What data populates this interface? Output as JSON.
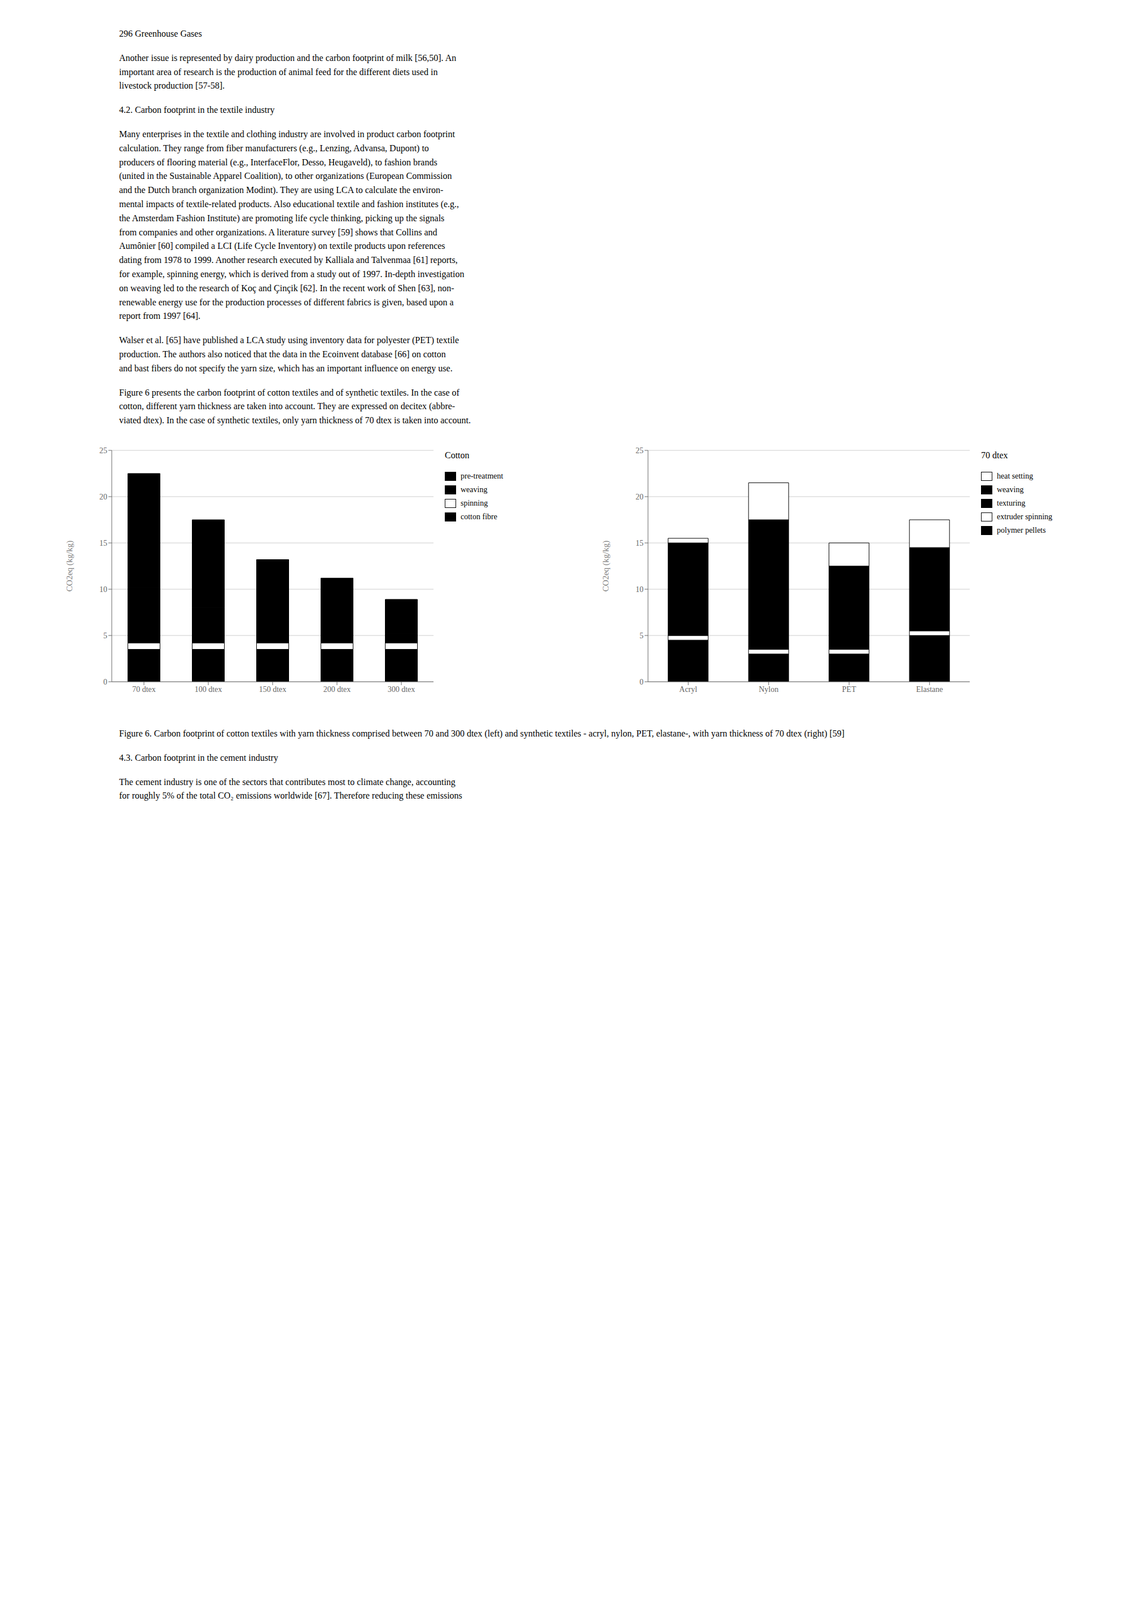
{
  "chart_data": [
    {
      "type": "bar",
      "title": "Cotton",
      "ylabel": "CO2eq (kg/kg)",
      "stacked": true,
      "grid": true,
      "legend": "right",
      "ylim": [
        0,
        25
      ],
      "yticks": [
        0,
        5,
        10,
        15,
        20,
        25
      ],
      "categories": [
        "70 dtex",
        "100 dtex",
        "150 dtex",
        "200 dtex",
        "300 dtex"
      ],
      "series": [
        {
          "name": "cotton fibre",
          "color": "#000000",
          "values": [
            3.5,
            3.5,
            3.5,
            3.5,
            3.5
          ]
        },
        {
          "name": "spinning",
          "color": "#ffffff",
          "values": [
            0.7,
            0.7,
            0.7,
            0.7,
            0.7
          ]
        },
        {
          "name": "weaving",
          "color": "#000000",
          "values": [
            6.0,
            3.8,
            2.5,
            1.5,
            1.0
          ]
        },
        {
          "name": "pre-treatment",
          "color": "#000000",
          "values": [
            12.3,
            9.5,
            6.5,
            5.5,
            3.7
          ]
        }
      ],
      "annotations": [
        "296    Greenhouse Gases",
        "Another issue is represented by dairy production and the carbon footprint of milk [56,50]. An\nimportant area of research is the production of animal feed for the different diets used in\nlivestock production [57-58].",
        "4.2. Carbon footprint in the textile industry",
        "Many enterprises in the textile and clothing industry are involved in product carbon footprint\ncalculation. They range from fiber manufacturers (e.g., Lenzing, Advansa, Dupont) to\nproducers of flooring material (e.g., InterfaceFlor, Desso, Heugaveld), to fashion brands\n(united in the Sustainable Apparel Coalition), to other organizations (European Commission\nand the Dutch branch organization Modint). They are using LCA to calculate the environ-\nmental impacts of textile-related products. Also educational textile and fashion institutes (e.g.,\nthe Amsterdam Fashion Institute) are promoting life cycle thinking, picking up the signals\nfrom companies and other organizations. A literature survey [59] shows that Collins and\nAumônier [60] compiled a LCI (Life Cycle Inventory) on textile products upon references\ndating from 1978 to 1999. Another research executed by Kalliala and Talvenmaa [61] reports,\nfor example, spinning energy, which is derived from a study out of 1997. In-depth investigation\non weaving led to the research of Koç and Çinçik [62]. In the recent work of Shen [63], non-\nrenewable energy use for the production processes of different fabrics is given, based upon a\nreport from 1997 [64].",
        "Walser et al. [65] have published a LCA study using inventory data for polyester (PET) textile\nproduction. The authors also noticed that the data in the Ecoinvent database [66] on cotton\nand bast fibers do not specify the yarn size, which has an important influence on energy use.",
        "Figure 6 presents the carbon footprint of cotton textiles and of synthetic textiles. In the case of\ncotton, different yarn thickness are taken into account. They are expressed on decitex (abbre-\nviated dtex). In the case of synthetic textiles, only yarn thickness of 70 dtex is taken into account."
      ]
    },
    {
      "type": "bar",
      "title": "70 dtex",
      "ylabel": "CO2eq (kg/kg)",
      "stacked": true,
      "grid": true,
      "legend": "right",
      "ylim": [
        0,
        25
      ],
      "yticks": [
        0,
        5,
        10,
        15,
        20,
        25
      ],
      "categories": [
        "Acryl",
        "Nylon",
        "PET",
        "Elastane"
      ],
      "series": [
        {
          "name": "polymer pellets",
          "color": "#000000",
          "values": [
            4.5,
            3.0,
            3.0,
            5.0
          ]
        },
        {
          "name": "extruder spinning",
          "color": "#ffffff",
          "values": [
            0.5,
            0.5,
            0.5,
            0.5
          ]
        },
        {
          "name": "texturing",
          "color": "#000000",
          "values": [
            0.3,
            0.3,
            0.3,
            0.3
          ]
        },
        {
          "name": "weaving",
          "color": "#000000",
          "values": [
            9.7,
            13.7,
            8.7,
            8.7
          ]
        },
        {
          "name": "heat setting",
          "color": "#ffffff",
          "values": [
            0.5,
            4.0,
            2.5,
            3.0
          ]
        }
      ],
      "annotations": [
        "Figure 6. Carbon footprint of cotton textiles with yarn thickness comprised between 70 and 300 dtex (left) and synthetic textiles - acryl, nylon, PET, elastane-, with yarn thickness of 70 dtex (right) [59]",
        "4.3. Carbon footprint in the cement industry",
        "The cement industry is one of the sectors that contributes most to climate change, accounting\nfor roughly 5% of the total CO₂ emissions worldwide [67]. Therefore reducing these emissions"
      ]
    }
  ]
}
